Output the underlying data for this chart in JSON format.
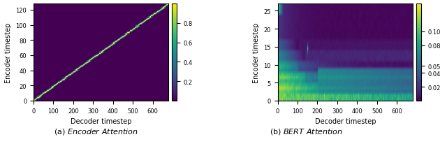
{
  "subplot1": {
    "xlabel": "Decoder timestep",
    "ylabel": "Encoder timestep",
    "decoder_steps": 680,
    "encoder_steps": 128,
    "cmap": "viridis",
    "vmin": 0.0,
    "vmax": 1.0,
    "colorbar_ticks": [
      0.2,
      0.4,
      0.6,
      0.8
    ],
    "xticks": [
      0,
      100,
      200,
      300,
      400,
      500,
      600
    ],
    "yticks": [
      0,
      20,
      40,
      60,
      80,
      100,
      120
    ]
  },
  "subplot2": {
    "xlabel": "Decoder timestep",
    "ylabel": "Encoder timestep",
    "decoder_steps": 680,
    "encoder_steps": 27,
    "cmap": "viridis",
    "vmin": 0.0,
    "vmax": 0.14,
    "colorbar_ticks": [
      0.02,
      0.04,
      0.05,
      0.08,
      0.1
    ],
    "xticks": [
      0,
      100,
      200,
      300,
      400,
      500,
      600
    ],
    "yticks": [
      0,
      5,
      10,
      15,
      20,
      25
    ]
  },
  "figure_bg": "#ffffff",
  "caption_fontsize": 8
}
